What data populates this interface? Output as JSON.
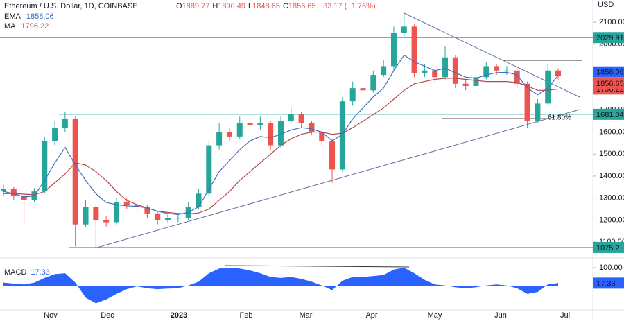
{
  "chart_data": {
    "type": "candlestick",
    "title": "Ethereum / U.S. Dollar, 1D, COINBASE",
    "header": {
      "o_label": "O",
      "open": 1889.77,
      "h_label": "H",
      "high": 1890.49,
      "l_label": "L",
      "low": 1848.65,
      "c_label": "C",
      "change": "−33.17 (−1.76%)"
    },
    "currency": "USD",
    "categories": [
      "Nov",
      "Dec",
      "2023",
      "Feb",
      "Mar",
      "Apr",
      "May",
      "Jun",
      "Jul"
    ],
    "candles": {
      "open": [
        1330,
        1340,
        1310,
        1290,
        1330,
        1560,
        1620,
        1660,
        1180,
        1260,
        1200,
        1190,
        1280,
        1270,
        1260,
        1230,
        1200,
        1210,
        1210,
        1260,
        1320,
        1540,
        1600,
        1580,
        1640,
        1630,
        1640,
        1540,
        1650,
        1680,
        1640,
        1600,
        1560,
        1430,
        1740,
        1800,
        1790,
        1860,
        1900,
        2050,
        2080,
        1870,
        1880,
        1850,
        1940,
        1820,
        1810,
        1850,
        1900,
        1880,
        1880,
        1820,
        1650,
        1730,
        1880
      ],
      "high": [
        1360,
        1350,
        1320,
        1345,
        1580,
        1650,
        1690,
        1670,
        1290,
        1270,
        1220,
        1300,
        1300,
        1290,
        1270,
        1240,
        1230,
        1230,
        1280,
        1340,
        1560,
        1640,
        1620,
        1670,
        1660,
        1670,
        1650,
        1670,
        1710,
        1690,
        1650,
        1610,
        1570,
        1760,
        1830,
        1820,
        1880,
        1930,
        2080,
        2140,
        2090,
        1910,
        1890,
        1990,
        1950,
        1840,
        1870,
        1920,
        1910,
        1900,
        1890,
        1830,
        1750,
        1910,
        1890
      ],
      "low": [
        1310,
        1290,
        1180,
        1280,
        1320,
        1540,
        1600,
        1080,
        1170,
        1075,
        1170,
        1180,
        1250,
        1240,
        1210,
        1180,
        1190,
        1190,
        1200,
        1250,
        1310,
        1520,
        1560,
        1570,
        1610,
        1610,
        1520,
        1530,
        1640,
        1620,
        1590,
        1540,
        1370,
        1420,
        1720,
        1770,
        1780,
        1850,
        1880,
        2030,
        1850,
        1850,
        1830,
        1840,
        1800,
        1790,
        1800,
        1840,
        1860,
        1860,
        1800,
        1620,
        1640,
        1720,
        1840
      ],
      "close": [
        1340,
        1310,
        1290,
        1330,
        1560,
        1620,
        1660,
        1180,
        1260,
        1200,
        1190,
        1280,
        1270,
        1260,
        1230,
        1200,
        1210,
        1210,
        1260,
        1320,
        1540,
        1600,
        1580,
        1640,
        1630,
        1640,
        1540,
        1650,
        1680,
        1640,
        1600,
        1560,
        1430,
        1740,
        1800,
        1790,
        1860,
        1900,
        2050,
        2080,
        1870,
        1880,
        1850,
        1940,
        1820,
        1810,
        1850,
        1900,
        1880,
        1880,
        1820,
        1650,
        1730,
        1880,
        1856.65
      ],
      "up_color": "#26a69a",
      "down_color": "#ef5350"
    },
    "ema": {
      "name": "EMA",
      "color": "#3f6fbf",
      "values": [
        1330,
        1320,
        1305,
        1310,
        1380,
        1460,
        1530,
        1450,
        1380,
        1320,
        1280,
        1270,
        1265,
        1262,
        1255,
        1240,
        1230,
        1225,
        1235,
        1260,
        1340,
        1420,
        1470,
        1520,
        1560,
        1580,
        1575,
        1590,
        1610,
        1620,
        1615,
        1600,
        1560,
        1590,
        1660,
        1710,
        1760,
        1800,
        1880,
        1950,
        1920,
        1900,
        1880,
        1890,
        1870,
        1850,
        1845,
        1860,
        1870,
        1872,
        1860,
        1800,
        1770,
        1800,
        1858.06
      ]
    },
    "ma": {
      "name": "MA",
      "color": "#b2474a",
      "values": [
        1320,
        1320,
        1318,
        1315,
        1330,
        1370,
        1410,
        1460,
        1450,
        1420,
        1380,
        1330,
        1290,
        1270,
        1255,
        1240,
        1235,
        1230,
        1228,
        1232,
        1250,
        1290,
        1330,
        1380,
        1420,
        1460,
        1500,
        1540,
        1570,
        1590,
        1600,
        1600,
        1590,
        1595,
        1620,
        1650,
        1680,
        1710,
        1750,
        1790,
        1820,
        1830,
        1840,
        1845,
        1845,
        1840,
        1835,
        1830,
        1830,
        1830,
        1825,
        1810,
        1790,
        1790,
        1796.22
      ]
    },
    "levels": [
      {
        "value": 2029.91,
        "color": "#26a69a"
      },
      {
        "value": 1681.04,
        "color": "#26a69a"
      },
      {
        "value": 1075.2,
        "color": "#26a69a"
      }
    ],
    "fib_label": "61.80%",
    "ylim": [
      1034,
      2201
    ],
    "yticks": [
      {
        "value": 2100,
        "label": "2100.00"
      },
      {
        "value": 2000,
        "label": "2000.00"
      },
      {
        "value": 1700,
        "label": "1700.00"
      },
      {
        "value": 1600,
        "label": "1600.00"
      },
      {
        "value": 1500,
        "label": "1500.00"
      },
      {
        "value": 1400,
        "label": "1400.00"
      },
      {
        "value": 1300,
        "label": "1300.00"
      },
      {
        "value": 1200,
        "label": "1200.00"
      },
      {
        "value": 1100,
        "label": "1100.00"
      }
    ],
    "macd": {
      "name": "MACD",
      "color": "#2962ff",
      "values": [
        20,
        15,
        10,
        20,
        45,
        65,
        70,
        20,
        -60,
        -90,
        -70,
        -40,
        -15,
        0,
        -10,
        -15,
        -12,
        -10,
        5,
        25,
        70,
        95,
        100,
        95,
        85,
        70,
        50,
        45,
        50,
        40,
        25,
        5,
        -20,
        30,
        50,
        50,
        55,
        60,
        90,
        100,
        70,
        35,
        10,
        5,
        -5,
        -10,
        -5,
        5,
        10,
        5,
        -10,
        -40,
        -30,
        10,
        17.33
      ],
      "ylim": [
        -118,
        122
      ],
      "yticks": [
        {
          "value": 100,
          "label": "100.00"
        }
      ]
    }
  }
}
